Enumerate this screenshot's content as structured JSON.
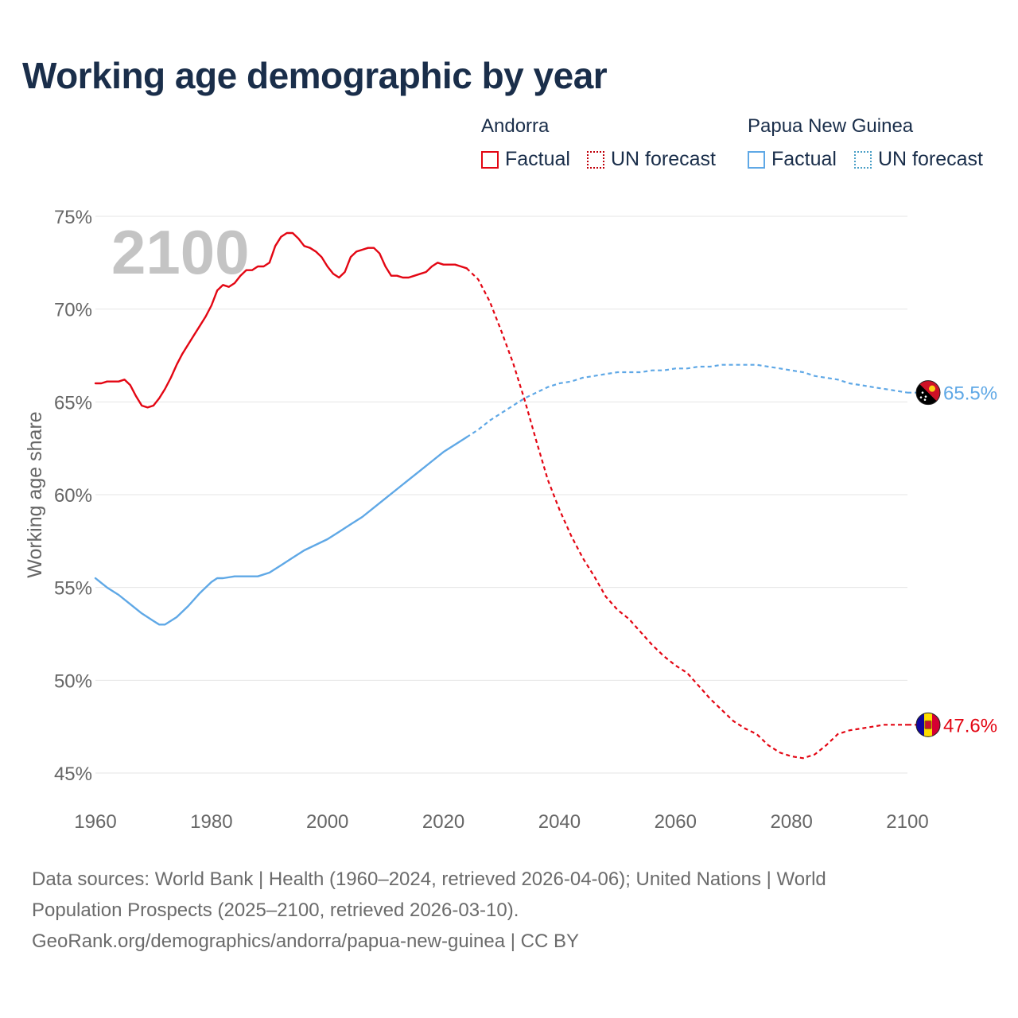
{
  "title": "Working age demographic by year",
  "legend": {
    "andorra": {
      "name": "Andorra",
      "factual": "Factual",
      "forecast": "UN forecast"
    },
    "png": {
      "name": "Papua New Guinea",
      "factual": "Factual",
      "forecast": "UN forecast"
    }
  },
  "footer": {
    "line1": "Data sources: World Bank | Health (1960–2024, retrieved 2026-04-06); United Nations | World",
    "line2": "Population Prospects (2025–2100, retrieved 2026-03-10).",
    "line3": "GeoRank.org/demographics/andorra/papua-new-guinea | CC BY"
  },
  "colors": {
    "andorra": "#e30613",
    "png": "#5fa8e6",
    "title": "#1a2e4a",
    "axis_text": "#666666",
    "grid": "#e5e5e5",
    "year_watermark": "#c4c4c4"
  },
  "chart_data": {
    "type": "line",
    "title": "Working age demographic by year",
    "ylabel": "Working age share",
    "xlabel": "",
    "xlim": [
      1960,
      2100
    ],
    "ylim": [
      45,
      75
    ],
    "xticks": [
      1960,
      1980,
      2000,
      2020,
      2040,
      2060,
      2080,
      2100
    ],
    "yticks": [
      45,
      50,
      55,
      60,
      65,
      70,
      75
    ],
    "ytick_labels": [
      "45%",
      "50%",
      "55%",
      "60%",
      "65%",
      "70%",
      "75%"
    ],
    "grid": true,
    "current_year_label": "2100",
    "series": [
      {
        "name": "Andorra",
        "color": "#e30613",
        "end_label": "47.6%",
        "factual": {
          "x": [
            1960,
            1961,
            1962,
            1963,
            1964,
            1965,
            1966,
            1967,
            1968,
            1969,
            1970,
            1971,
            1972,
            1973,
            1974,
            1975,
            1976,
            1977,
            1978,
            1979,
            1980,
            1981,
            1982,
            1983,
            1984,
            1985,
            1986,
            1987,
            1988,
            1989,
            1990,
            1991,
            1992,
            1993,
            1994,
            1995,
            1996,
            1997,
            1998,
            1999,
            2000,
            2001,
            2002,
            2003,
            2004,
            2005,
            2006,
            2007,
            2008,
            2009,
            2010,
            2011,
            2012,
            2013,
            2014,
            2015,
            2016,
            2017,
            2018,
            2019,
            2020,
            2021,
            2022,
            2023,
            2024
          ],
          "y": [
            66.0,
            66.0,
            66.1,
            66.1,
            66.1,
            66.2,
            65.9,
            65.3,
            64.8,
            64.7,
            64.8,
            65.2,
            65.7,
            66.3,
            67.0,
            67.6,
            68.1,
            68.6,
            69.1,
            69.6,
            70.2,
            71.0,
            71.3,
            71.2,
            71.4,
            71.8,
            72.1,
            72.1,
            72.3,
            72.3,
            72.5,
            73.4,
            73.9,
            74.1,
            74.1,
            73.8,
            73.4,
            73.3,
            73.1,
            72.8,
            72.3,
            71.9,
            71.7,
            72.0,
            72.8,
            73.1,
            73.2,
            73.3,
            73.3,
            73.0,
            72.3,
            71.8,
            71.8,
            71.7,
            71.7,
            71.8,
            71.9,
            72.0,
            72.3,
            72.5,
            72.4,
            72.4,
            72.4,
            72.3,
            72.2
          ]
        },
        "forecast": {
          "x": [
            2024,
            2026,
            2028,
            2030,
            2032,
            2034,
            2036,
            2038,
            2040,
            2042,
            2044,
            2046,
            2048,
            2050,
            2052,
            2054,
            2056,
            2058,
            2060,
            2062,
            2064,
            2066,
            2068,
            2070,
            2072,
            2074,
            2076,
            2078,
            2080,
            2082,
            2084,
            2086,
            2088,
            2090,
            2092,
            2094,
            2096,
            2098,
            2100
          ],
          "y": [
            72.2,
            71.6,
            70.4,
            68.8,
            67.1,
            65.1,
            62.9,
            60.8,
            59.2,
            57.8,
            56.6,
            55.6,
            54.5,
            53.8,
            53.3,
            52.6,
            51.9,
            51.3,
            50.8,
            50.4,
            49.7,
            49.0,
            48.4,
            47.8,
            47.4,
            47.1,
            46.5,
            46.1,
            45.9,
            45.8,
            46.0,
            46.5,
            47.1,
            47.3,
            47.4,
            47.5,
            47.6,
            47.6,
            47.6
          ]
        }
      },
      {
        "name": "Papua New Guinea",
        "color": "#5fa8e6",
        "end_label": "65.5%",
        "factual": {
          "x": [
            1960,
            1962,
            1964,
            1966,
            1968,
            1970,
            1971,
            1972,
            1974,
            1976,
            1978,
            1980,
            1981,
            1982,
            1984,
            1986,
            1988,
            1990,
            1992,
            1994,
            1996,
            1998,
            2000,
            2002,
            2004,
            2006,
            2008,
            2010,
            2012,
            2014,
            2016,
            2018,
            2020,
            2022,
            2024
          ],
          "y": [
            55.5,
            55.0,
            54.6,
            54.1,
            53.6,
            53.2,
            53.0,
            53.0,
            53.4,
            54.0,
            54.7,
            55.3,
            55.5,
            55.5,
            55.6,
            55.6,
            55.6,
            55.8,
            56.2,
            56.6,
            57.0,
            57.3,
            57.6,
            58.0,
            58.4,
            58.8,
            59.3,
            59.8,
            60.3,
            60.8,
            61.3,
            61.8,
            62.3,
            62.7,
            63.1
          ]
        },
        "forecast": {
          "x": [
            2024,
            2026,
            2028,
            2030,
            2032,
            2034,
            2036,
            2038,
            2040,
            2042,
            2044,
            2046,
            2048,
            2050,
            2052,
            2054,
            2056,
            2058,
            2060,
            2062,
            2064,
            2066,
            2068,
            2070,
            2072,
            2074,
            2076,
            2078,
            2080,
            2082,
            2084,
            2086,
            2088,
            2090,
            2092,
            2094,
            2096,
            2098,
            2100
          ],
          "y": [
            63.1,
            63.5,
            64.0,
            64.4,
            64.8,
            65.2,
            65.5,
            65.8,
            66.0,
            66.1,
            66.3,
            66.4,
            66.5,
            66.6,
            66.6,
            66.6,
            66.7,
            66.7,
            66.8,
            66.8,
            66.9,
            66.9,
            67.0,
            67.0,
            67.0,
            67.0,
            66.9,
            66.8,
            66.7,
            66.6,
            66.4,
            66.3,
            66.2,
            66.0,
            65.9,
            65.8,
            65.7,
            65.6,
            65.5
          ]
        }
      }
    ]
  }
}
